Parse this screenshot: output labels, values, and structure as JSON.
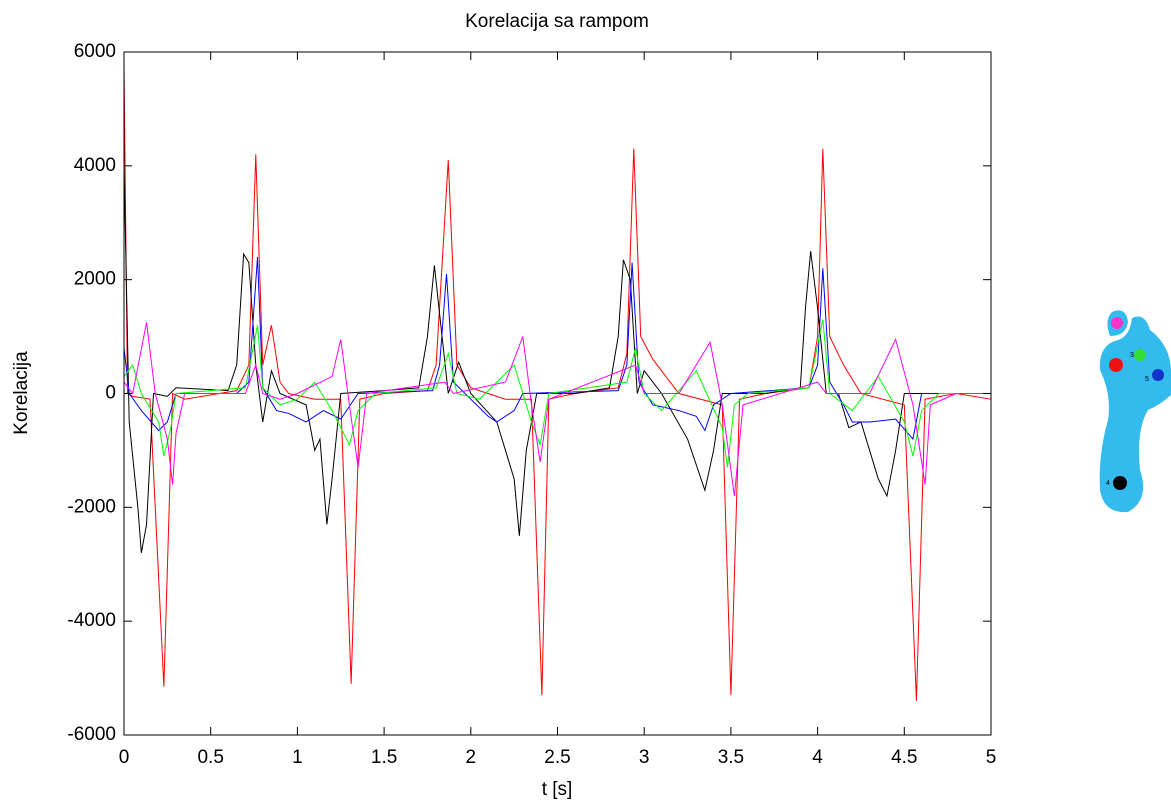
{
  "chart_data": {
    "type": "line",
    "title": "Korelacija sa rampom",
    "xlabel": "t [s]",
    "ylabel": "Korelacija",
    "xlim": [
      0,
      5
    ],
    "ylim": [
      -6000,
      6000
    ],
    "xticks": [
      0,
      0.5,
      1,
      1.5,
      2,
      2.5,
      3,
      3.5,
      4,
      4.5,
      5
    ],
    "yticks": [
      -6000,
      -4000,
      -2000,
      0,
      2000,
      4000,
      6000
    ],
    "annotations": [
      "3",
      "5",
      "4"
    ],
    "series": [
      {
        "color": "#ff0000",
        "x": [
          0,
          0.02,
          0.05,
          0.15,
          0.23,
          0.28,
          0.35,
          0.65,
          0.72,
          0.76,
          0.8,
          0.85,
          0.9,
          0.95,
          1.1,
          1.25,
          1.31,
          1.36,
          1.5,
          1.75,
          1.8,
          1.87,
          1.92,
          2.0,
          2.2,
          2.35,
          2.41,
          2.45,
          2.6,
          2.85,
          2.9,
          2.94,
          2.98,
          3.05,
          3.2,
          3.45,
          3.5,
          3.55,
          3.7,
          3.95,
          4.0,
          4.03,
          4.07,
          4.15,
          4.25,
          4.5,
          4.57,
          4.62,
          4.8,
          5.0
        ],
        "values": [
          5800,
          0,
          -50,
          -100,
          -5150,
          0,
          -100,
          50,
          500,
          4200,
          500,
          1200,
          200,
          0,
          -100,
          -100,
          -5100,
          -100,
          0,
          50,
          500,
          4100,
          500,
          100,
          -100,
          -100,
          -5300,
          -100,
          0,
          100,
          700,
          4300,
          1000,
          600,
          0,
          -200,
          -5300,
          -100,
          0,
          100,
          1000,
          4300,
          1000,
          500,
          0,
          -200,
          -5400,
          -100,
          0,
          -100
        ]
      },
      {
        "color": "#000000",
        "x": [
          0,
          0.03,
          0.08,
          0.1,
          0.13,
          0.17,
          0.25,
          0.3,
          0.6,
          0.65,
          0.69,
          0.72,
          0.76,
          0.8,
          0.85,
          0.9,
          1.05,
          1.1,
          1.13,
          1.17,
          1.2,
          1.25,
          1.5,
          1.7,
          1.75,
          1.79,
          1.82,
          1.87,
          1.93,
          2.0,
          2.15,
          2.25,
          2.28,
          2.32,
          2.38,
          2.6,
          2.8,
          2.85,
          2.88,
          2.92,
          2.96,
          3.0,
          3.1,
          3.25,
          3.35,
          3.4,
          3.45,
          3.7,
          3.9,
          3.93,
          3.96,
          4.0,
          4.05,
          4.12,
          4.18,
          4.25,
          4.35,
          4.4,
          4.45,
          4.5,
          5.0
        ],
        "values": [
          4000,
          -500,
          -2000,
          -2800,
          -2300,
          0,
          -50,
          100,
          50,
          500,
          2450,
          2300,
          500,
          -500,
          400,
          0,
          -200,
          -1000,
          -800,
          -2300,
          -1500,
          0,
          50,
          100,
          1000,
          2250,
          1400,
          0,
          550,
          0,
          -500,
          -1500,
          -2500,
          -1000,
          0,
          0,
          100,
          1000,
          2350,
          2000,
          0,
          400,
          0,
          -800,
          -1700,
          -1000,
          0,
          0,
          100,
          1500,
          2500,
          1500,
          0,
          0,
          -600,
          -500,
          -1500,
          -1800,
          -1000,
          0,
          0
        ]
      },
      {
        "color": "#0000ff",
        "x": [
          0,
          0.03,
          0.1,
          0.2,
          0.25,
          0.3,
          0.65,
          0.72,
          0.77,
          0.8,
          0.88,
          0.95,
          1.05,
          1.15,
          1.25,
          1.35,
          1.78,
          1.82,
          1.86,
          1.9,
          2.0,
          2.1,
          2.15,
          2.25,
          2.3,
          2.85,
          2.9,
          2.93,
          2.97,
          3.05,
          3.2,
          3.3,
          3.35,
          3.4,
          3.5,
          3.95,
          4.0,
          4.03,
          4.07,
          4.15,
          4.2,
          4.3,
          4.45,
          4.55,
          4.6,
          5.0
        ],
        "values": [
          800,
          0,
          -300,
          -650,
          -500,
          0,
          0,
          200,
          2400,
          100,
          -300,
          -350,
          -500,
          -300,
          -450,
          0,
          50,
          500,
          2100,
          200,
          -100,
          -400,
          -500,
          -300,
          0,
          50,
          500,
          2300,
          200,
          -200,
          -300,
          -400,
          -650,
          -200,
          0,
          100,
          500,
          2200,
          200,
          -200,
          -500,
          -500,
          -450,
          -800,
          0,
          0
        ]
      },
      {
        "color": "#00ff00",
        "x": [
          0,
          0.05,
          0.1,
          0.2,
          0.23,
          0.27,
          0.3,
          0.7,
          0.77,
          0.8,
          0.9,
          1.0,
          1.1,
          1.2,
          1.3,
          1.35,
          1.45,
          1.8,
          1.87,
          1.92,
          2.05,
          2.15,
          2.25,
          2.3,
          2.35,
          2.4,
          2.45,
          2.9,
          2.95,
          3.0,
          3.1,
          3.3,
          3.45,
          3.48,
          3.52,
          3.6,
          3.95,
          4.03,
          4.07,
          4.2,
          4.35,
          4.5,
          4.55,
          4.6,
          4.7,
          5.0
        ],
        "values": [
          300,
          500,
          0,
          -500,
          -1100,
          -600,
          0,
          100,
          1200,
          100,
          -200,
          -100,
          200,
          -300,
          -900,
          -300,
          0,
          100,
          700,
          0,
          -100,
          200,
          500,
          0,
          -500,
          -900,
          0,
          200,
          800,
          0,
          -300,
          400,
          -600,
          -1300,
          -200,
          0,
          100,
          1300,
          0,
          -300,
          300,
          -500,
          -1100,
          -300,
          0,
          0
        ]
      },
      {
        "color": "#ff00ff",
        "x": [
          0,
          0.05,
          0.13,
          0.18,
          0.25,
          0.28,
          0.3,
          0.35,
          0.7,
          0.76,
          0.8,
          0.9,
          1.0,
          1.2,
          1.25,
          1.3,
          1.35,
          1.4,
          1.85,
          1.9,
          2.2,
          2.3,
          2.35,
          2.4,
          2.45,
          2.95,
          3.0,
          3.2,
          3.38,
          3.45,
          3.52,
          3.57,
          4.0,
          4.05,
          4.3,
          4.45,
          4.55,
          4.62,
          4.65,
          4.8,
          5.0
        ],
        "values": [
          200,
          0,
          1250,
          0,
          -800,
          -1600,
          -700,
          0,
          0,
          500,
          0,
          -100,
          0,
          300,
          950,
          -200,
          -1300,
          0,
          200,
          0,
          200,
          1000,
          -200,
          -1200,
          -100,
          500,
          0,
          0,
          900,
          -200,
          -1800,
          -200,
          200,
          0,
          0,
          950,
          -200,
          -1600,
          -200,
          0,
          0
        ]
      }
    ]
  }
}
